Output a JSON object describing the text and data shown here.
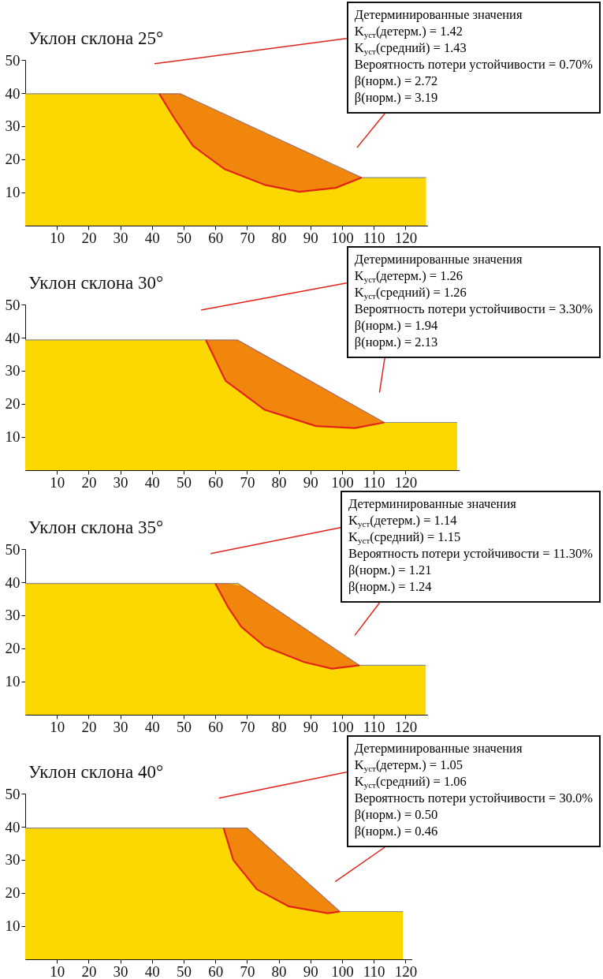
{
  "chart_data": [
    {
      "type": "area",
      "title": "Уклон склона 25°",
      "annotations": [
        "Детерминированные значения",
        "K$_{уст}$(детерм.) = 1.42",
        "K$_{уст}$(средний) = 1.43",
        "Вероятность потери устойчивости = 0.70%",
        "β(норм.) = 2.72",
        "β(норм.) = 3.19"
      ],
      "xlim": [
        0,
        127
      ],
      "xticks": [
        10,
        20,
        30,
        40,
        50,
        60,
        70,
        80,
        90,
        100,
        110,
        120
      ],
      "ylim": [
        0,
        50
      ],
      "yticks": [
        10,
        20,
        30,
        40,
        50
      ],
      "series": [
        {
          "type": "area",
          "color": "#fcd800",
          "x": [
            0,
            49,
            106.2,
            126.5
          ],
          "values": [
            39.8,
            39.8,
            14.5,
            14.5
          ]
        },
        {
          "type": "line",
          "color": "#e2231a",
          "x": [
            42.3,
            47,
            49,
            53,
            63,
            75.6,
            86.5,
            98,
            106.2
          ],
          "values": [
            39.8,
            32.5,
            29.7,
            24,
            17,
            12.3,
            10.2,
            11.4,
            14.5
          ],
          "lower": [
            39.8,
            32.5,
            29.7,
            24,
            17,
            12.3,
            10.2,
            11.4,
            14.5
          ],
          "upper": [
            39.8,
            39.8,
            39.8,
            38,
            33.6,
            28,
            23.2,
            18,
            14.5
          ]
        }
      ]
    },
    {
      "type": "area",
      "title": "Уклон склона 30°",
      "annotations": [
        "Детерминированные значения",
        "K$_{уст}$(детерм.) = 1.26",
        "K$_{уст}$(средний) = 1.26",
        "Вероятность потери устойчивости = 3.30%",
        "β(норм.) = 1.94",
        "β(норм.) = 2.13"
      ],
      "xlim": [
        0,
        137
      ],
      "xticks": [
        10,
        20,
        30,
        40,
        50,
        60,
        70,
        80,
        90,
        100,
        110,
        120
      ],
      "ylim": [
        0,
        50
      ],
      "yticks": [
        10,
        20,
        30,
        40,
        50
      ],
      "series": [
        {
          "type": "area",
          "color": "#fcd800",
          "x": [
            0,
            67,
            113.3,
            136.3
          ],
          "values": [
            39.3,
            39.3,
            14.4,
            14.4
          ]
        },
        {
          "type": "line",
          "color": "#e2231a",
          "x": [
            57,
            63.2,
            67,
            75.6,
            91.8,
            104,
            113.3
          ],
          "values": [
            39.3,
            27,
            24.3,
            18.2,
            13.3,
            12.7,
            14.4
          ],
          "lower": [
            39.3,
            27,
            24.3,
            18.2,
            13.3,
            12.7,
            14.4
          ],
          "upper": [
            39.3,
            39.3,
            39.3,
            34.7,
            26,
            19.4,
            14.4
          ]
        }
      ]
    },
    {
      "type": "area",
      "title": "Уклон склона 35°",
      "annotations": [
        "Детерминированные значения",
        "K$_{уст}$(детерм.) = 1.14",
        "K$_{уст}$(средний) = 1.15",
        "Вероятность потери устойчивости = 11.30%",
        "β(норм.) = 1.21",
        "β(норм.) = 1.24"
      ],
      "xlim": [
        0,
        127
      ],
      "xticks": [
        10,
        20,
        30,
        40,
        50,
        60,
        70,
        80,
        90,
        100,
        110,
        120
      ],
      "ylim": [
        0,
        50
      ],
      "yticks": [
        10,
        20,
        30,
        40,
        50
      ],
      "series": [
        {
          "type": "area",
          "color": "#fcd800",
          "x": [
            0,
            67.2,
            105.5,
            126.4
          ],
          "values": [
            39.6,
            39.6,
            14.9,
            14.9
          ]
        },
        {
          "type": "line",
          "color": "#e2231a",
          "x": [
            60,
            64,
            68.2,
            75.6,
            88,
            96.8,
            105.5
          ],
          "values": [
            39.6,
            32.5,
            26.5,
            20.6,
            15.9,
            13.9,
            14.9
          ],
          "lower": [
            39.6,
            32.5,
            26.5,
            20.6,
            15.9,
            13.9,
            14.9
          ],
          "upper": [
            39.6,
            39.6,
            39,
            34.2,
            26.2,
            20.5,
            14.9
          ]
        }
      ]
    },
    {
      "type": "area",
      "title": "Уклон склона 40°",
      "annotations": [
        "Детерминированные значения",
        "K$_{уст}$(детерм.) = 1.05",
        "K$_{уст}$(средний) = 1.06",
        "Вероятность потери устойчивости = 30.0%",
        "β(норм.) = 0.50",
        "β(норм.) = 0.46"
      ],
      "xlim": [
        0,
        122
      ],
      "xticks": [
        10,
        20,
        30,
        40,
        50,
        60,
        70,
        80,
        90,
        100,
        110,
        120
      ],
      "ylim": [
        0,
        50
      ],
      "yticks": [
        10,
        20,
        30,
        40,
        50
      ],
      "series": [
        {
          "type": "area",
          "color": "#fcd800",
          "x": [
            0,
            70,
            99.3,
            119.2
          ],
          "values": [
            39.6,
            39.6,
            14.4,
            14.4
          ]
        },
        {
          "type": "line",
          "color": "#e2231a",
          "x": [
            62.6,
            65.7,
            70,
            73.1,
            83.1,
            95.5,
            99.3
          ],
          "values": [
            39.6,
            29.9,
            24.8,
            21.1,
            16,
            13.9,
            14.4
          ],
          "lower": [
            39.6,
            29.9,
            24.8,
            21.1,
            16,
            13.9,
            14.4
          ],
          "upper": [
            39.6,
            39.6,
            39.6,
            36.9,
            28.3,
            17.7,
            14.4
          ]
        }
      ]
    }
  ]
}
